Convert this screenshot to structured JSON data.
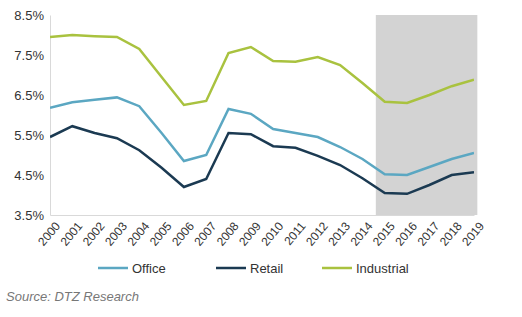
{
  "chart_data": {
    "type": "line",
    "categories": [
      "2000",
      "2001",
      "2002",
      "2003",
      "2004",
      "2005",
      "2006",
      "2007",
      "2008",
      "2009",
      "2010",
      "2011",
      "2012",
      "2013",
      "2014",
      "2015",
      "2016",
      "2017",
      "2018",
      "2019"
    ],
    "series": [
      {
        "name": "Office",
        "color": "#5ba7c2",
        "values": [
          6.18,
          6.32,
          6.38,
          6.44,
          6.22,
          5.55,
          4.85,
          5.0,
          6.15,
          6.03,
          5.65,
          5.55,
          5.45,
          5.2,
          4.9,
          4.52,
          4.5,
          4.7,
          4.9,
          5.05
        ]
      },
      {
        "name": "Retail",
        "color": "#1b3a52",
        "values": [
          5.45,
          5.72,
          5.55,
          5.42,
          5.12,
          4.68,
          4.2,
          4.4,
          5.55,
          5.52,
          5.22,
          5.18,
          4.98,
          4.75,
          4.42,
          4.05,
          4.03,
          4.25,
          4.5,
          4.57
        ]
      },
      {
        "name": "Industrial",
        "color": "#a9c23f",
        "values": [
          7.95,
          8.0,
          7.97,
          7.95,
          7.65,
          6.95,
          6.25,
          6.35,
          7.55,
          7.7,
          7.35,
          7.33,
          7.45,
          7.25,
          6.8,
          6.33,
          6.3,
          6.5,
          6.72,
          6.88
        ]
      }
    ],
    "ylim": [
      3.5,
      8.5
    ],
    "yticks": [
      {
        "value": 3.5,
        "label": "3.5%"
      },
      {
        "value": 4.5,
        "label": "4.5%"
      },
      {
        "value": 5.5,
        "label": "5.5%"
      },
      {
        "value": 6.5,
        "label": "6.5%"
      },
      {
        "value": 7.5,
        "label": "7.5%"
      },
      {
        "value": 8.5,
        "label": "8.5%"
      }
    ],
    "grid": false,
    "legend": "bottom",
    "shaded_range": {
      "from": "2015",
      "to": "2019"
    },
    "source": "Source: DTZ Research"
  }
}
